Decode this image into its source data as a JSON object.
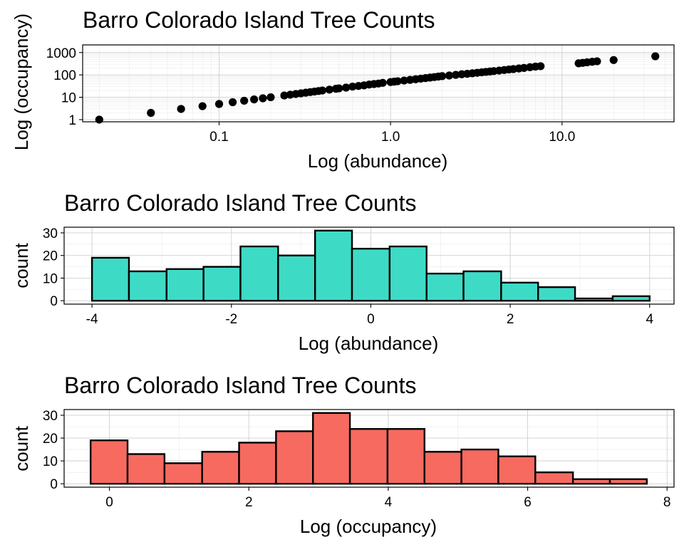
{
  "chart_data": [
    {
      "type": "scatter",
      "title": "Barro Colorado Island Tree Counts",
      "xlabel": "Log (abundance)",
      "ylabel": "Log (occupancy)",
      "x_scale": "log10",
      "y_scale": "log10",
      "xlim": [
        0.016,
        45
      ],
      "ylim": [
        0.8,
        2200
      ],
      "x_ticks": [
        0.1,
        1,
        10
      ],
      "x_tick_labels": [
        "0.1",
        "1.0",
        "10.0"
      ],
      "y_ticks": [
        1,
        10,
        100,
        1000
      ],
      "y_tick_labels": [
        "1",
        "10",
        "100",
        "1000"
      ],
      "grid": true,
      "point_color": "#000000",
      "points": [
        [
          0.02,
          1
        ],
        [
          0.04,
          2
        ],
        [
          0.06,
          3
        ],
        [
          0.08,
          4
        ],
        [
          0.1,
          5
        ],
        [
          0.12,
          6
        ],
        [
          0.14,
          7
        ],
        [
          0.16,
          8
        ],
        [
          0.18,
          9
        ],
        [
          0.2,
          10
        ],
        [
          0.24,
          12
        ],
        [
          0.26,
          13
        ],
        [
          0.28,
          14
        ],
        [
          0.3,
          15
        ],
        [
          0.32,
          16
        ],
        [
          0.34,
          17
        ],
        [
          0.36,
          18
        ],
        [
          0.38,
          19
        ],
        [
          0.4,
          20
        ],
        [
          0.44,
          22
        ],
        [
          0.48,
          24
        ],
        [
          0.5,
          25
        ],
        [
          0.55,
          27
        ],
        [
          0.6,
          30
        ],
        [
          0.65,
          32
        ],
        [
          0.7,
          34
        ],
        [
          0.75,
          37
        ],
        [
          0.8,
          39
        ],
        [
          0.85,
          41
        ],
        [
          0.9,
          44
        ],
        [
          1.0,
          48
        ],
        [
          1.05,
          50
        ],
        [
          1.1,
          52
        ],
        [
          1.2,
          56
        ],
        [
          1.3,
          60
        ],
        [
          1.4,
          64
        ],
        [
          1.5,
          68
        ],
        [
          1.6,
          72
        ],
        [
          1.7,
          76
        ],
        [
          1.8,
          80
        ],
        [
          1.9,
          84
        ],
        [
          2.0,
          88
        ],
        [
          2.2,
          94
        ],
        [
          2.4,
          100
        ],
        [
          2.6,
          107
        ],
        [
          2.8,
          112
        ],
        [
          3.0,
          118
        ],
        [
          3.2,
          124
        ],
        [
          3.4,
          130
        ],
        [
          3.6,
          136
        ],
        [
          3.8,
          142
        ],
        [
          4.0,
          148
        ],
        [
          4.3,
          156
        ],
        [
          4.6,
          165
        ],
        [
          4.9,
          174
        ],
        [
          5.2,
          182
        ],
        [
          5.6,
          194
        ],
        [
          6.0,
          205
        ],
        [
          6.5,
          220
        ],
        [
          7.0,
          235
        ],
        [
          7.5,
          245
        ],
        [
          12.5,
          330
        ],
        [
          13.2,
          345
        ],
        [
          14.0,
          365
        ],
        [
          15.0,
          385
        ],
        [
          16.0,
          405
        ],
        [
          20.0,
          460
        ],
        [
          35.0,
          680
        ]
      ]
    },
    {
      "type": "bar",
      "title": "Barro Colorado Island Tree Counts",
      "xlabel": "Log (abundance)",
      "ylabel": "count",
      "xlim": [
        -4.4,
        4.35
      ],
      "ylim": [
        -1.5,
        32.5
      ],
      "x_ticks": [
        -4,
        -2,
        0,
        2,
        4
      ],
      "x_tick_labels": [
        "-4",
        "-2",
        "0",
        "2",
        "4"
      ],
      "y_ticks": [
        0,
        10,
        20,
        30
      ],
      "y_tick_labels": [
        "0",
        "10",
        "20",
        "30"
      ],
      "grid": true,
      "bar_color": "#3ddbc6",
      "bin_edges": [
        -4.0,
        -3.47,
        -2.93,
        -2.4,
        -1.87,
        -1.33,
        -0.8,
        -0.27,
        0.27,
        0.8,
        1.33,
        1.87,
        2.4,
        2.93,
        3.47,
        4.0
      ],
      "values": [
        19,
        13,
        14,
        15,
        24,
        20,
        31,
        23,
        24,
        12,
        13,
        8,
        6,
        1,
        2
      ]
    },
    {
      "type": "bar",
      "title": "Barro Colorado Island Tree Counts",
      "xlabel": "Log (occupancy)",
      "ylabel": "count",
      "xlim": [
        -0.65,
        8.1
      ],
      "ylim": [
        -1.5,
        32.5
      ],
      "x_ticks": [
        0,
        2,
        4,
        6,
        8
      ],
      "x_tick_labels": [
        "0",
        "2",
        "4",
        "6",
        "8"
      ],
      "y_ticks": [
        0,
        10,
        20,
        30
      ],
      "y_tick_labels": [
        "0",
        "10",
        "20",
        "30"
      ],
      "grid": true,
      "bar_color": "#f76a60",
      "bin_edges": [
        -0.27,
        0.26,
        0.79,
        1.33,
        1.86,
        2.39,
        2.92,
        3.45,
        3.99,
        4.52,
        5.05,
        5.58,
        6.11,
        6.65,
        7.18,
        7.71
      ],
      "values": [
        19,
        13,
        9,
        14,
        18,
        23,
        31,
        24,
        24,
        14,
        15,
        12,
        5,
        2,
        2
      ]
    }
  ]
}
